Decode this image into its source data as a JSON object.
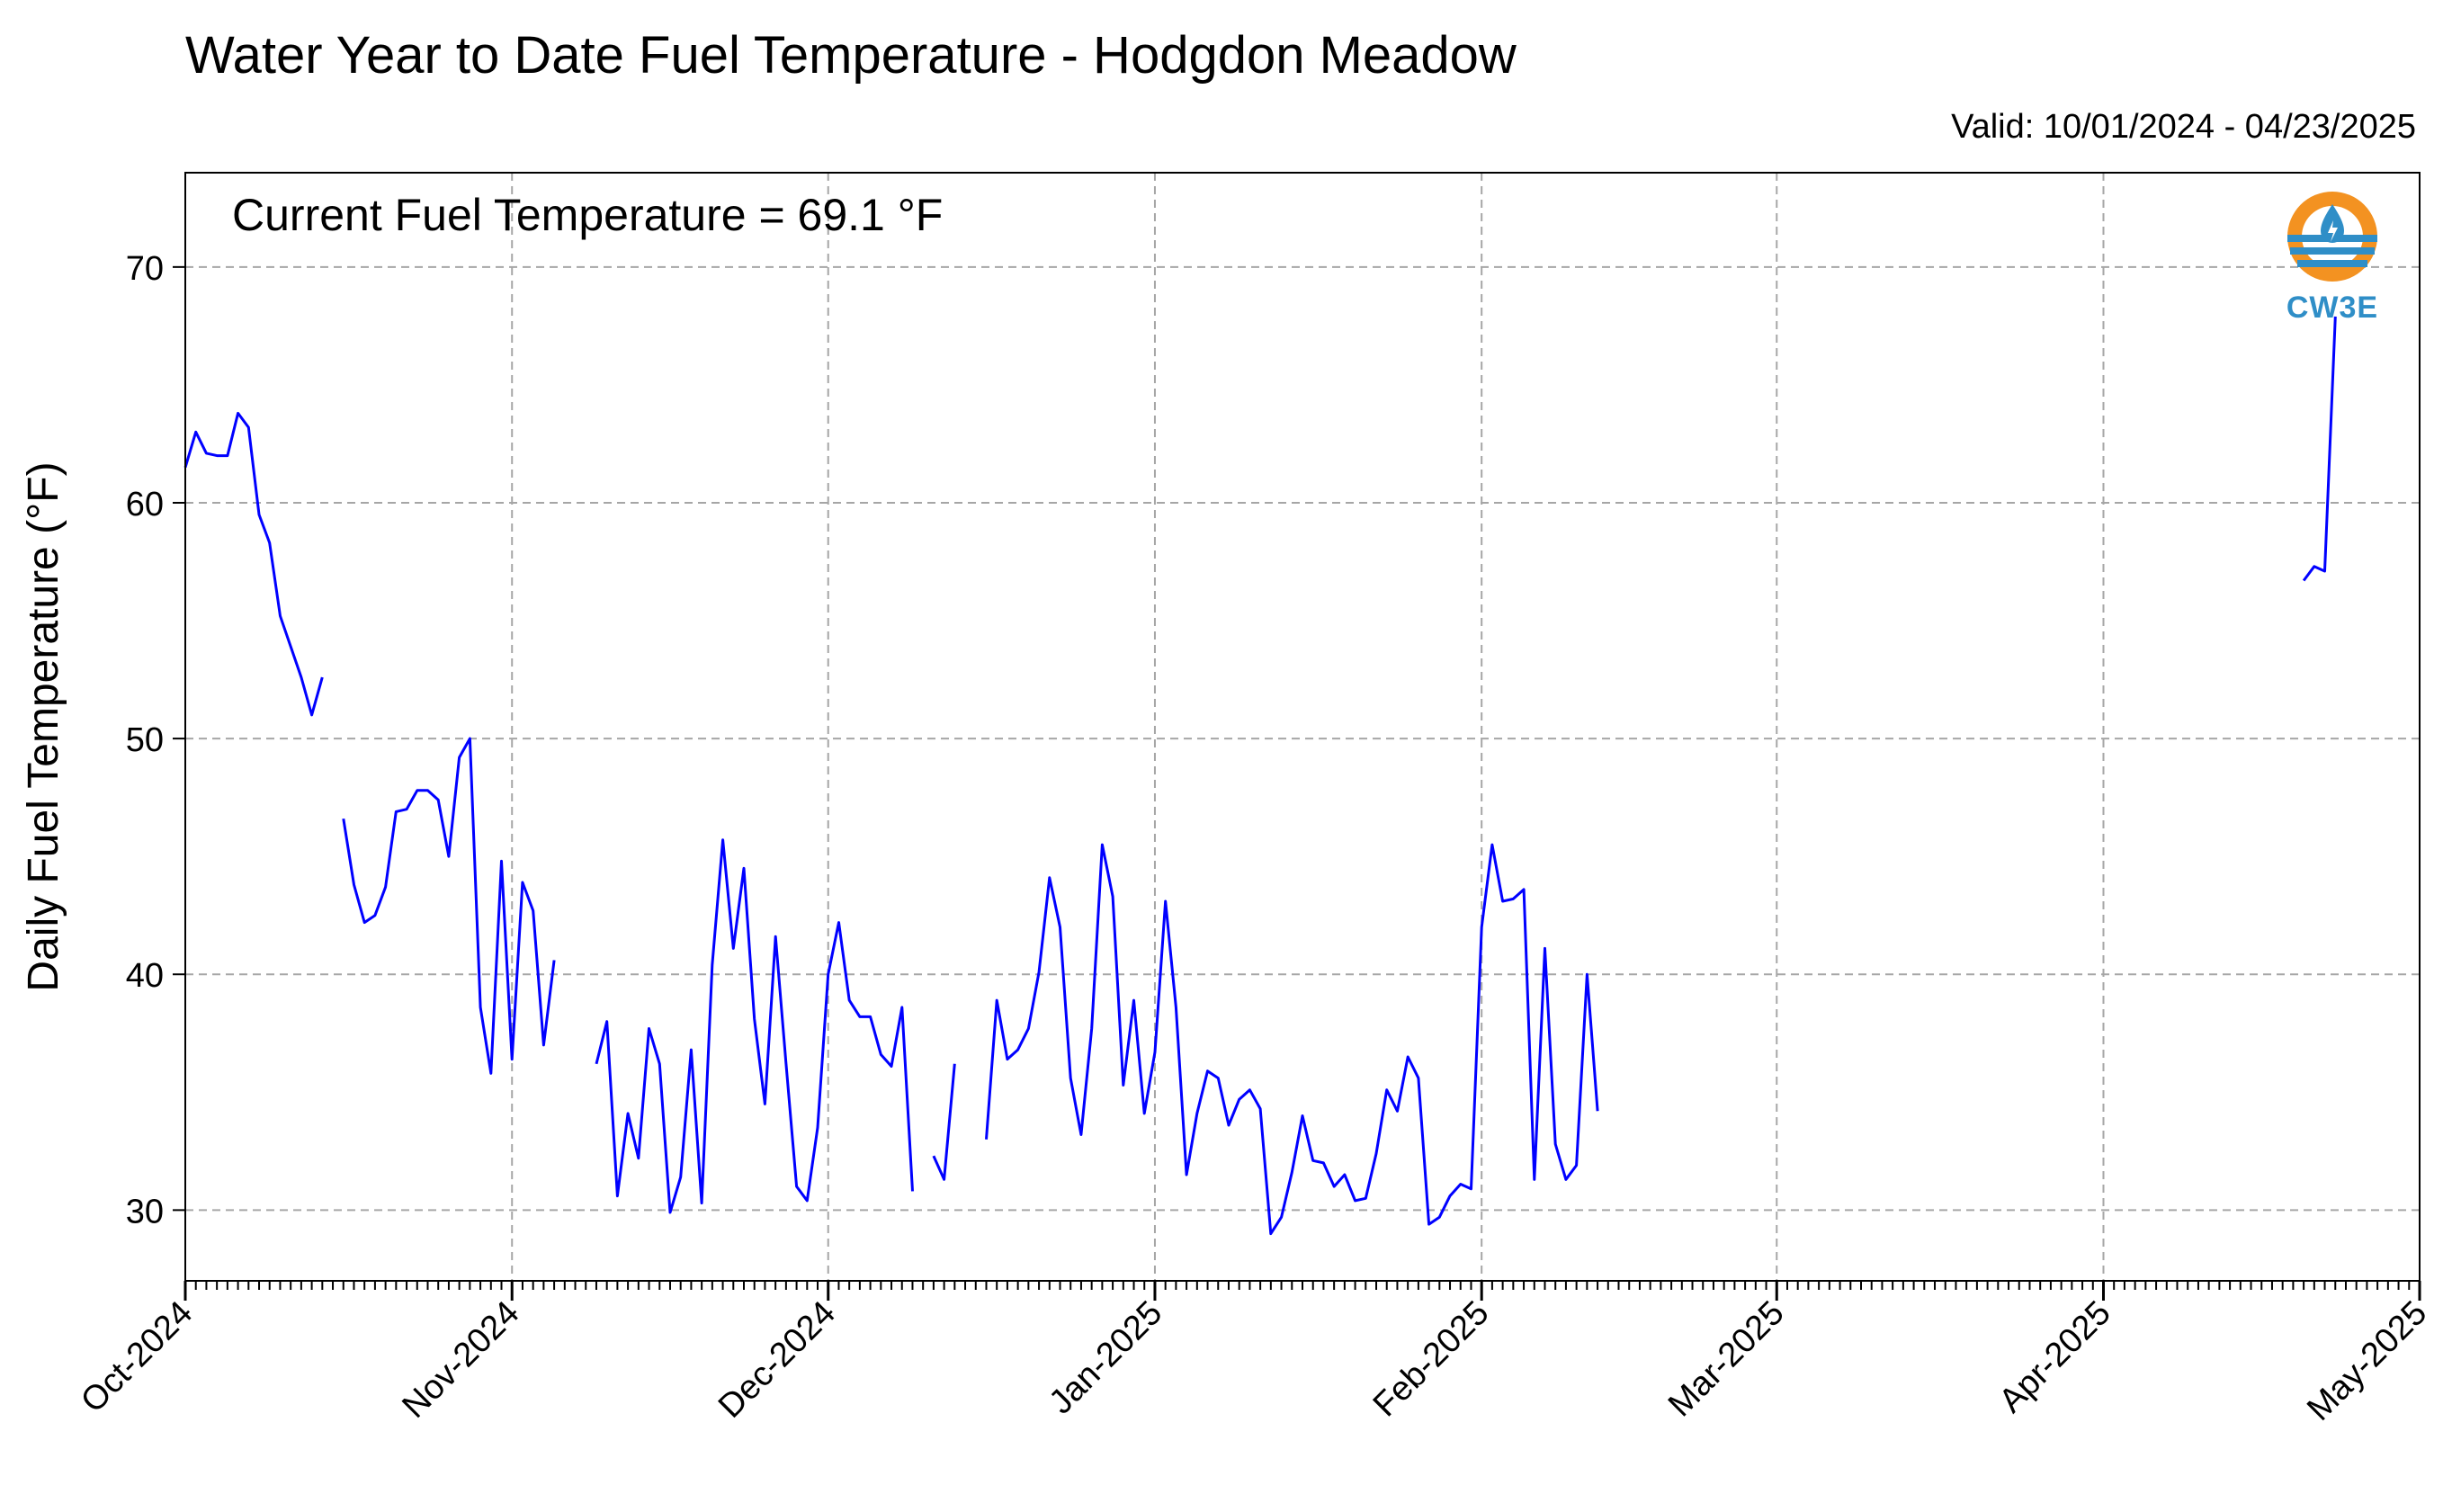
{
  "colors": {
    "series": "#0000ff",
    "grid": "#a6a6a6",
    "logo_orange": "#f39221",
    "logo_blue": "#2f8ec7"
  },
  "logo": {
    "name": "cw3e-logo",
    "text": "CW3E"
  },
  "chart_data": {
    "type": "line",
    "title": "Water Year to Date Fuel Temperature - Hodgdon Meadow",
    "subtitle": "Valid: 10/01/2024 - 04/23/2025",
    "annotation": "Current Fuel Temperature = 69.1 °F",
    "xlabel": "",
    "ylabel": "Daily Fuel Temperature (°F)",
    "xlim": [
      "2024-10-01",
      "2025-05-01"
    ],
    "ylim": [
      27,
      74
    ],
    "grid": true,
    "x_ticks": [
      {
        "date": "2024-10-01",
        "label": "Oct-2024"
      },
      {
        "date": "2024-11-01",
        "label": "Nov-2024"
      },
      {
        "date": "2024-12-01",
        "label": "Dec-2024"
      },
      {
        "date": "2025-01-01",
        "label": "Jan-2025"
      },
      {
        "date": "2025-02-01",
        "label": "Feb-2025"
      },
      {
        "date": "2025-03-01",
        "label": "Mar-2025"
      },
      {
        "date": "2025-04-01",
        "label": "Apr-2025"
      },
      {
        "date": "2025-05-01",
        "label": "May-2025"
      }
    ],
    "y_ticks": [
      30,
      40,
      50,
      60,
      70
    ],
    "series": [
      {
        "segments": [
          [
            [
              "2024-10-01",
              61.5
            ],
            [
              "2024-10-02",
              63.0
            ],
            [
              "2024-10-03",
              62.1
            ],
            [
              "2024-10-04",
              62.0
            ],
            [
              "2024-10-05",
              62.0
            ],
            [
              "2024-10-06",
              63.8
            ],
            [
              "2024-10-07",
              63.2
            ],
            [
              "2024-10-08",
              59.5
            ],
            [
              "2024-10-09",
              58.3
            ],
            [
              "2024-10-10",
              55.2
            ],
            [
              "2024-10-11",
              53.9
            ],
            [
              "2024-10-12",
              52.6
            ],
            [
              "2024-10-13",
              51.0
            ],
            [
              "2024-10-14",
              52.6
            ]
          ],
          [
            [
              "2024-10-16",
              46.6
            ],
            [
              "2024-10-17",
              43.8
            ],
            [
              "2024-10-18",
              42.2
            ],
            [
              "2024-10-19",
              42.5
            ],
            [
              "2024-10-20",
              43.7
            ],
            [
              "2024-10-21",
              46.9
            ],
            [
              "2024-10-22",
              47.0
            ],
            [
              "2024-10-23",
              47.8
            ],
            [
              "2024-10-24",
              47.8
            ],
            [
              "2024-10-25",
              47.4
            ],
            [
              "2024-10-26",
              45.0
            ],
            [
              "2024-10-27",
              49.2
            ],
            [
              "2024-10-28",
              50.0
            ],
            [
              "2024-10-29",
              38.6
            ],
            [
              "2024-10-30",
              35.8
            ],
            [
              "2024-10-31",
              44.8
            ],
            [
              "2024-11-01",
              36.4
            ],
            [
              "2024-11-02",
              43.9
            ],
            [
              "2024-11-03",
              42.7
            ],
            [
              "2024-11-04",
              37.0
            ],
            [
              "2024-11-05",
              40.6
            ]
          ],
          [
            [
              "2024-11-09",
              36.2
            ],
            [
              "2024-11-10",
              38.0
            ],
            [
              "2024-11-11",
              30.6
            ],
            [
              "2024-11-12",
              34.1
            ],
            [
              "2024-11-13",
              32.2
            ],
            [
              "2024-11-14",
              37.7
            ],
            [
              "2024-11-15",
              36.2
            ],
            [
              "2024-11-16",
              29.9
            ],
            [
              "2024-11-17",
              31.4
            ],
            [
              "2024-11-18",
              36.8
            ],
            [
              "2024-11-19",
              30.3
            ],
            [
              "2024-11-20",
              40.4
            ],
            [
              "2024-11-21",
              45.7
            ],
            [
              "2024-11-22",
              41.1
            ],
            [
              "2024-11-23",
              44.5
            ],
            [
              "2024-11-24",
              38.1
            ],
            [
              "2024-11-25",
              34.5
            ],
            [
              "2024-11-26",
              41.6
            ],
            [
              "2024-11-27",
              36.2
            ],
            [
              "2024-11-28",
              31.0
            ],
            [
              "2024-11-29",
              30.4
            ],
            [
              "2024-11-30",
              33.5
            ],
            [
              "2024-12-01",
              40.0
            ],
            [
              "2024-12-02",
              42.2
            ],
            [
              "2024-12-03",
              38.9
            ],
            [
              "2024-12-04",
              38.2
            ],
            [
              "2024-12-05",
              38.2
            ],
            [
              "2024-12-06",
              36.6
            ],
            [
              "2024-12-07",
              36.1
            ],
            [
              "2024-12-08",
              38.6
            ],
            [
              "2024-12-09",
              30.8
            ]
          ],
          [
            [
              "2024-12-11",
              32.3
            ],
            [
              "2024-12-12",
              31.3
            ],
            [
              "2024-12-13",
              36.2
            ]
          ],
          [
            [
              "2024-12-16",
              33.0
            ],
            [
              "2024-12-17",
              38.9
            ],
            [
              "2024-12-18",
              36.4
            ],
            [
              "2024-12-19",
              36.8
            ],
            [
              "2024-12-20",
              37.7
            ],
            [
              "2024-12-21",
              40.1
            ],
            [
              "2024-12-22",
              44.1
            ],
            [
              "2024-12-23",
              42.0
            ],
            [
              "2024-12-24",
              35.6
            ],
            [
              "2024-12-25",
              33.2
            ],
            [
              "2024-12-26",
              37.7
            ],
            [
              "2024-12-27",
              45.5
            ],
            [
              "2024-12-28",
              43.3
            ],
            [
              "2024-12-29",
              35.3
            ],
            [
              "2024-12-30",
              38.9
            ],
            [
              "2024-12-31",
              34.1
            ],
            [
              "2025-01-01",
              36.7
            ],
            [
              "2025-01-02",
              43.1
            ],
            [
              "2025-01-03",
              38.6
            ],
            [
              "2025-01-04",
              31.5
            ],
            [
              "2025-01-05",
              34.1
            ],
            [
              "2025-01-06",
              35.9
            ],
            [
              "2025-01-07",
              35.6
            ],
            [
              "2025-01-08",
              33.6
            ],
            [
              "2025-01-09",
              34.7
            ],
            [
              "2025-01-10",
              35.1
            ],
            [
              "2025-01-11",
              34.3
            ],
            [
              "2025-01-12",
              29.0
            ],
            [
              "2025-01-13",
              29.7
            ],
            [
              "2025-01-14",
              31.6
            ],
            [
              "2025-01-15",
              34.0
            ],
            [
              "2025-01-16",
              32.1
            ],
            [
              "2025-01-17",
              32.0
            ],
            [
              "2025-01-18",
              31.0
            ],
            [
              "2025-01-19",
              31.5
            ],
            [
              "2025-01-20",
              30.4
            ],
            [
              "2025-01-21",
              30.5
            ],
            [
              "2025-01-22",
              32.4
            ],
            [
              "2025-01-23",
              35.1
            ],
            [
              "2025-01-24",
              34.2
            ],
            [
              "2025-01-25",
              36.5
            ],
            [
              "2025-01-26",
              35.6
            ],
            [
              "2025-01-27",
              29.4
            ],
            [
              "2025-01-28",
              29.7
            ],
            [
              "2025-01-29",
              30.6
            ],
            [
              "2025-01-30",
              31.1
            ],
            [
              "2025-01-31",
              30.9
            ],
            [
              "2025-02-01",
              42.0
            ],
            [
              "2025-02-02",
              45.5
            ],
            [
              "2025-02-03",
              43.1
            ],
            [
              "2025-02-04",
              43.2
            ],
            [
              "2025-02-05",
              43.6
            ],
            [
              "2025-02-06",
              31.3
            ],
            [
              "2025-02-07",
              41.1
            ],
            [
              "2025-02-08",
              32.8
            ],
            [
              "2025-02-09",
              31.3
            ],
            [
              "2025-02-10",
              31.9
            ],
            [
              "2025-02-11",
              40.0
            ],
            [
              "2025-02-12",
              34.2
            ]
          ],
          [
            [
              "2025-04-20",
              56.7
            ],
            [
              "2025-04-21",
              57.3
            ],
            [
              "2025-04-22",
              57.1
            ],
            [
              "2025-04-23",
              67.9
            ]
          ]
        ]
      }
    ]
  }
}
